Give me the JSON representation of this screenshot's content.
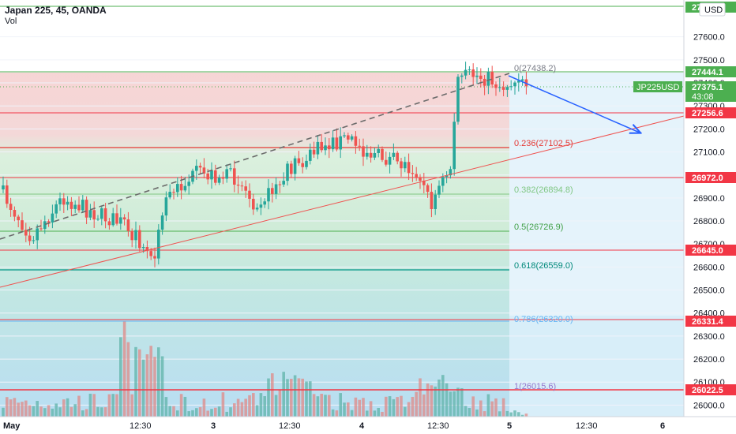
{
  "header": {
    "symbol": "Japan 225, 45, OANDA",
    "volume_label": "Vol"
  },
  "currency_button": "USD",
  "colors": {
    "bull": "#26a69a",
    "bear": "#ef5350",
    "accent_green": "#4caf50",
    "accent_red": "#f23645",
    "arrow_blue": "#2962ff"
  },
  "price_axis": {
    "ticks": [
      "27600.0",
      "27500.0",
      "27400.0",
      "27300.0",
      "27200.0",
      "27100.0",
      "27000.0",
      "26900.0",
      "26800.0",
      "26700.0",
      "26600.0",
      "26500.0",
      "26400.0",
      "26300.0",
      "26200.0",
      "26100.0",
      "26000.0"
    ],
    "ymin": 25950,
    "ymax": 27760
  },
  "time_axis": {
    "ticks": [
      "May",
      "12:30",
      "3",
      "12:30",
      "4",
      "12:30",
      "5",
      "12:30",
      "6"
    ]
  },
  "price_labels": {
    "top_green": "27...6",
    "level_27444": "27444.1",
    "current_price": "27375.1",
    "countdown": "43:08",
    "symbol_tag": "JP225USD",
    "level_27256": "27256.6",
    "level_26972": "26972.0",
    "level_26645": "26645.0",
    "level_26331": "26331.4",
    "level_26022": "26022.5"
  },
  "fib_levels": [
    {
      "ratio": "0",
      "value": "27438.2",
      "text": "0(27438.2)"
    },
    {
      "ratio": "0.236",
      "value": "27102.5",
      "text": "0.236(27102.5)"
    },
    {
      "ratio": "0.382",
      "value": "26894.8",
      "text": "0.382(26894.8)"
    },
    {
      "ratio": "0.5",
      "value": "26726.9",
      "text": "0.5(26726.9)"
    },
    {
      "ratio": "0.618",
      "value": "26559.0",
      "text": "0.618(26559.0)"
    },
    {
      "ratio": "0.786",
      "value": "26320.0",
      "text": "0.786(26320.0)"
    },
    {
      "ratio": "1",
      "value": "26015.6",
      "text": "1(26015.6)"
    }
  ]
}
